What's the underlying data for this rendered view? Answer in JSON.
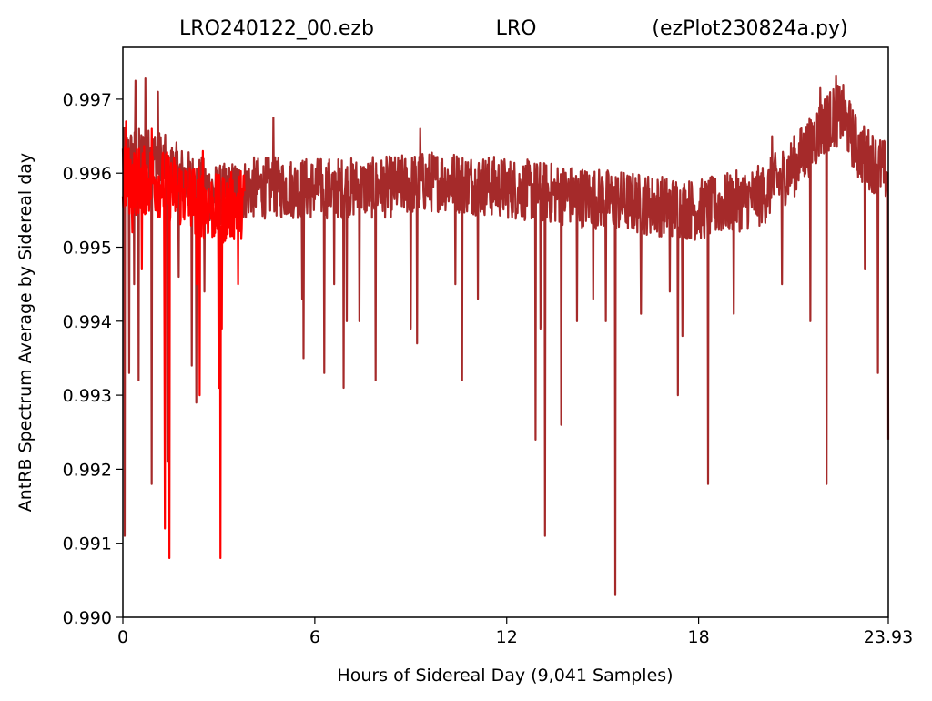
{
  "chart_data": {
    "type": "line",
    "title_parts": [
      "LRO240122_00.ezb",
      "LRO",
      "(ezPlot230824a.py)"
    ],
    "xlabel": "Hours of Sidereal Day  (9,041 Samples)",
    "ylabel": "AntRB Spectrum Average by Sidereal day",
    "xlim": [
      0,
      23.93
    ],
    "ylim": [
      0.99,
      0.9977
    ],
    "xticks": [
      0,
      6,
      12,
      18,
      23.93
    ],
    "xtick_labels": [
      "0",
      "6",
      "12",
      "18",
      "23.93"
    ],
    "yticks": [
      0.99,
      0.991,
      0.992,
      0.993,
      0.994,
      0.995,
      0.996,
      0.997
    ],
    "ytick_labels": [
      "0.990",
      "0.991",
      "0.992",
      "0.993",
      "0.994",
      "0.995",
      "0.996",
      "0.997"
    ],
    "grid": false,
    "series": [
      {
        "color": "#a52a2a",
        "baseline": [
          [
            0,
            0.9962
          ],
          [
            1,
            0.9962
          ],
          [
            2,
            0.9959
          ],
          [
            3,
            0.9957
          ],
          [
            4,
            0.9958
          ],
          [
            6,
            0.9958
          ],
          [
            8,
            0.9958
          ],
          [
            10,
            0.9959
          ],
          [
            12,
            0.9958
          ],
          [
            14,
            0.9957
          ],
          [
            16,
            0.9956
          ],
          [
            18,
            0.9955
          ],
          [
            19,
            0.9956
          ],
          [
            20,
            0.9957
          ],
          [
            21,
            0.9961
          ],
          [
            22,
            0.9967
          ],
          [
            22.5,
            0.9968
          ],
          [
            23,
            0.9963
          ],
          [
            23.93,
            0.996
          ]
        ],
        "spikes": [
          [
            0.05,
            0.9911
          ],
          [
            0.2,
            0.9933
          ],
          [
            0.35,
            0.9945
          ],
          [
            0.5,
            0.9932
          ],
          [
            0.7,
            0.9941
          ],
          [
            0.9,
            0.9918
          ],
          [
            1.1,
            0.9939
          ],
          [
            1.4,
            0.9921
          ],
          [
            1.45,
            0.9935
          ],
          [
            1.75,
            0.9946
          ],
          [
            2.15,
            0.9934
          ],
          [
            2.3,
            0.9929
          ],
          [
            2.55,
            0.9944
          ],
          [
            3.0,
            0.9937
          ],
          [
            5.6,
            0.9943
          ],
          [
            5.65,
            0.9935
          ],
          [
            6.3,
            0.9933
          ],
          [
            6.6,
            0.9945
          ],
          [
            6.9,
            0.9931
          ],
          [
            7.0,
            0.994
          ],
          [
            7.4,
            0.994
          ],
          [
            7.9,
            0.9932
          ],
          [
            9.0,
            0.9939
          ],
          [
            9.2,
            0.9937
          ],
          [
            10.4,
            0.9945
          ],
          [
            10.6,
            0.9932
          ],
          [
            11.1,
            0.9943
          ],
          [
            12.9,
            0.9924
          ],
          [
            13.05,
            0.9939
          ],
          [
            13.2,
            0.9911
          ],
          [
            13.7,
            0.9926
          ],
          [
            14.2,
            0.994
          ],
          [
            14.7,
            0.9943
          ],
          [
            15.1,
            0.994
          ],
          [
            15.4,
            0.9903
          ],
          [
            16.2,
            0.9941
          ],
          [
            17.1,
            0.9944
          ],
          [
            17.35,
            0.993
          ],
          [
            17.5,
            0.9938
          ],
          [
            18.3,
            0.9918
          ],
          [
            19.1,
            0.9941
          ],
          [
            20.6,
            0.9945
          ],
          [
            21.5,
            0.994
          ],
          [
            22.0,
            0.9918
          ],
          [
            23.2,
            0.9947
          ],
          [
            23.6,
            0.9933
          ],
          [
            23.93,
            0.9924
          ]
        ],
        "peaks": [
          [
            0.4,
            0.99725
          ],
          [
            0.7,
            0.99728
          ],
          [
            1.1,
            0.9971
          ],
          [
            4.7,
            0.99675
          ],
          [
            9.3,
            0.9966
          ],
          [
            20.3,
            0.9965
          ],
          [
            21.8,
            0.99715
          ],
          [
            22.3,
            0.99732
          ]
        ]
      },
      {
        "color": "#ff0000",
        "x_range": [
          0,
          3.8
        ],
        "baseline": [
          [
            0,
            0.9959
          ],
          [
            1,
            0.9959
          ],
          [
            2,
            0.9957
          ],
          [
            3,
            0.9955
          ],
          [
            3.8,
            0.9956
          ]
        ],
        "spikes": [
          [
            0.1,
            0.993
          ],
          [
            0.3,
            0.9952
          ],
          [
            0.6,
            0.9947
          ],
          [
            1.3,
            0.9938
          ],
          [
            1.32,
            0.9912
          ],
          [
            1.45,
            0.9908
          ],
          [
            2.3,
            0.9945
          ],
          [
            2.4,
            0.993
          ],
          [
            3.0,
            0.9931
          ],
          [
            3.05,
            0.9908
          ],
          [
            3.1,
            0.9939
          ],
          [
            3.6,
            0.9945
          ]
        ],
        "peaks": [
          [
            0.1,
            0.9967
          ],
          [
            0.9,
            0.9966
          ],
          [
            2.5,
            0.9963
          ]
        ]
      }
    ]
  }
}
